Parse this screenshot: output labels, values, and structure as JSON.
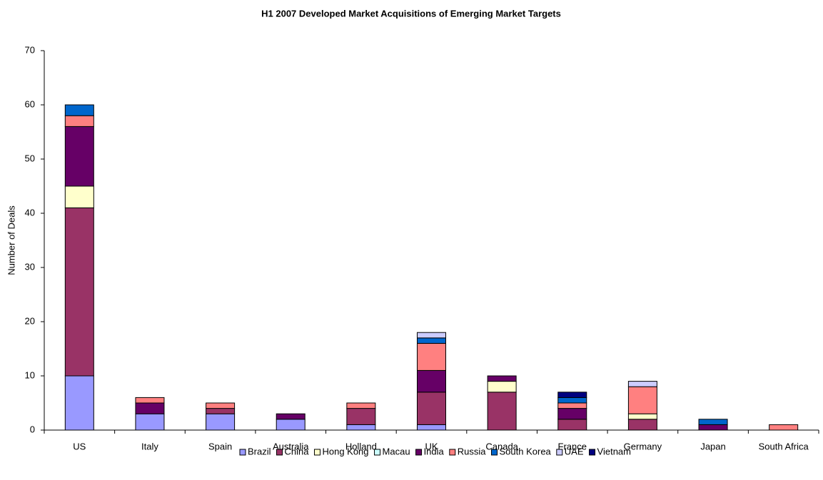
{
  "chart_data": {
    "type": "stacked_bar",
    "title": "H1 2007 Developed Market Acquisitions of Emerging Market Targets",
    "y_label": "Number of Deals",
    "categories": [
      "US",
      "Italy",
      "Spain",
      "Australia",
      "Holland",
      "UK",
      "Canada",
      "France",
      "Germany",
      "Japan",
      "South Africa"
    ],
    "series": [
      {
        "name": "Brazil",
        "color": "#9999ff",
        "values": [
          10,
          3,
          3,
          2,
          1,
          1,
          0,
          0,
          0,
          0,
          0
        ]
      },
      {
        "name": "China",
        "color": "#993366",
        "values": [
          31,
          0,
          1,
          0,
          3,
          6,
          7,
          2,
          2,
          0,
          0
        ]
      },
      {
        "name": "Hong Kong",
        "color": "#ffffcc",
        "values": [
          4,
          0,
          0,
          0,
          0,
          0,
          2,
          0,
          1,
          0,
          0
        ]
      },
      {
        "name": "Macau",
        "color": "#ccffff",
        "values": [
          0,
          0,
          0,
          0,
          0,
          0,
          0,
          0,
          0,
          0,
          0
        ]
      },
      {
        "name": "India",
        "color": "#660066",
        "values": [
          11,
          2,
          0,
          1,
          0,
          4,
          1,
          2,
          0,
          1,
          0
        ]
      },
      {
        "name": "Russia",
        "color": "#ff8080",
        "values": [
          2,
          1,
          1,
          0,
          1,
          5,
          0,
          1,
          5,
          0,
          1
        ]
      },
      {
        "name": "South Korea",
        "color": "#0066cc",
        "values": [
          2,
          0,
          0,
          0,
          0,
          1,
          0,
          1,
          0,
          1,
          0
        ]
      },
      {
        "name": "UAE",
        "color": "#ccccff",
        "values": [
          0,
          0,
          0,
          0,
          0,
          1,
          0,
          0,
          1,
          0,
          0
        ]
      },
      {
        "name": "Vietnam",
        "color": "#000080",
        "values": [
          0,
          0,
          0,
          0,
          0,
          0,
          0,
          1,
          0,
          0,
          0
        ]
      }
    ],
    "ylim": [
      0,
      70
    ],
    "yticks": [
      0,
      10,
      20,
      30,
      40,
      50,
      60,
      70
    ],
    "legend": "bottom"
  }
}
